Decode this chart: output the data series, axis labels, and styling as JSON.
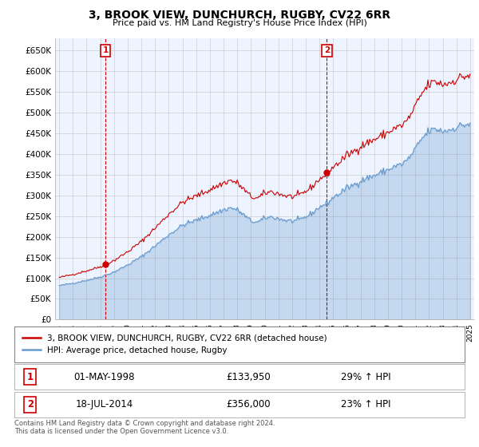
{
  "title": "3, BROOK VIEW, DUNCHURCH, RUGBY, CV22 6RR",
  "subtitle": "Price paid vs. HM Land Registry's House Price Index (HPI)",
  "legend_line1": "3, BROOK VIEW, DUNCHURCH, RUGBY, CV22 6RR (detached house)",
  "legend_line2": "HPI: Average price, detached house, Rugby",
  "sale1_label": "1",
  "sale1_date": "01-MAY-1998",
  "sale1_price": "£133,950",
  "sale1_hpi": "29% ↑ HPI",
  "sale1_year": 1998.37,
  "sale1_value": 133950,
  "sale2_label": "2",
  "sale2_date": "18-JUL-2014",
  "sale2_price": "£356,000",
  "sale2_hpi": "23% ↑ HPI",
  "sale2_year": 2014.54,
  "sale2_value": 356000,
  "ylim": [
    0,
    680000
  ],
  "yticks": [
    0,
    50000,
    100000,
    150000,
    200000,
    250000,
    300000,
    350000,
    400000,
    450000,
    500000,
    550000,
    600000,
    650000
  ],
  "ytick_labels": [
    "£0",
    "£50K",
    "£100K",
    "£150K",
    "£200K",
    "£250K",
    "£300K",
    "£350K",
    "£400K",
    "£450K",
    "£500K",
    "£550K",
    "£600K",
    "£650K"
  ],
  "price_line_color": "#cc0000",
  "hpi_line_color": "#6699cc",
  "hpi_fill_color": "#ddeeff",
  "grid_color": "#cccccc",
  "background_color": "#ffffff",
  "chart_bg_color": "#eef4ff",
  "footnote": "Contains HM Land Registry data © Crown copyright and database right 2024.\nThis data is licensed under the Open Government Licence v3.0."
}
